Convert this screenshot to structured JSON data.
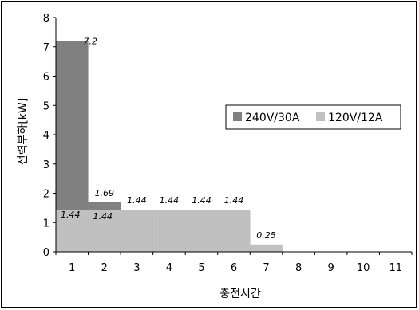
{
  "chart_data": {
    "type": "bar",
    "xlabel": "충전시간",
    "ylabel": "전력부하[kW]",
    "categories": [
      "1",
      "2",
      "3",
      "4",
      "5",
      "6",
      "7",
      "8",
      "9",
      "10",
      "11"
    ],
    "ylim": [
      0,
      8
    ],
    "yticks": [
      "0",
      "1",
      "2",
      "3",
      "4",
      "5",
      "6",
      "7",
      "8"
    ],
    "grid": false,
    "legend_position": "right",
    "series": [
      {
        "name": "240V/30A",
        "color": "#808080",
        "values": [
          7.2,
          1.69,
          1.44,
          1.44,
          1.44,
          1.44,
          null,
          null,
          null,
          null,
          null
        ]
      },
      {
        "name": "120V/12A",
        "color": "#c0c0c0",
        "values": [
          1.44,
          1.44,
          1.44,
          1.44,
          1.44,
          1.44,
          0.25,
          null,
          null,
          null,
          null
        ]
      }
    ],
    "data_labels": [
      {
        "text": "7.2",
        "x": "1",
        "y": 7.2
      },
      {
        "text": "1.69",
        "x": "2",
        "y": 1.69
      },
      {
        "text": "1.44",
        "x": "3",
        "y": 1.44
      },
      {
        "text": "1.44",
        "x": "4",
        "y": 1.44
      },
      {
        "text": "1.44",
        "x": "5",
        "y": 1.44
      },
      {
        "text": "1.44",
        "x": "6",
        "y": 1.44
      },
      {
        "text": "1.44",
        "x": "1",
        "y": 1.44
      },
      {
        "text": "1.44",
        "x": "2",
        "y": 1.44
      },
      {
        "text": "0.25",
        "x": "7",
        "y": 0.25
      }
    ]
  }
}
